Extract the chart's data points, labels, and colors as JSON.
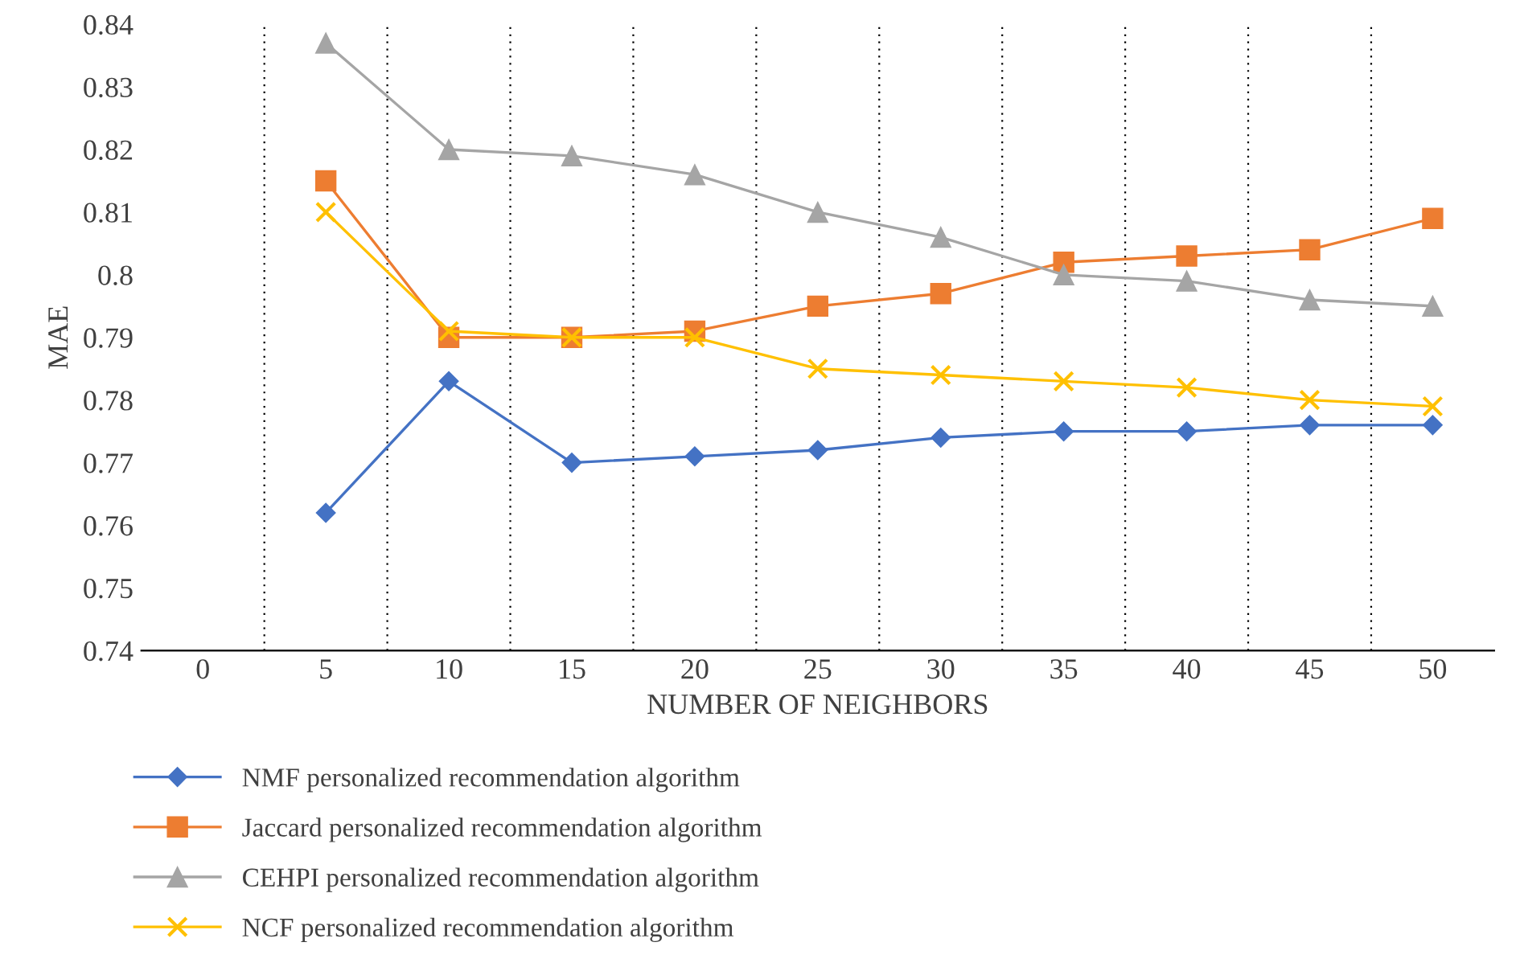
{
  "chart_data": {
    "type": "line",
    "xlabel": "NUMBER OF NEIGHBORS",
    "ylabel": "MAE",
    "categories": [
      "0",
      "5",
      "10",
      "15",
      "20",
      "25",
      "30",
      "35",
      "40",
      "45",
      "50"
    ],
    "series": [
      {
        "name": "NMF personalized recommendation algorithm",
        "color": "#4472c4",
        "marker": "diamond",
        "values": [
          null,
          0.762,
          0.783,
          0.77,
          0.771,
          0.772,
          0.774,
          0.775,
          0.775,
          0.776,
          0.776
        ]
      },
      {
        "name": "Jaccard personalized recommendation algorithm",
        "color": "#ed7d31",
        "marker": "square",
        "values": [
          null,
          0.815,
          0.79,
          0.79,
          0.791,
          0.795,
          0.797,
          0.802,
          0.803,
          0.804,
          0.809
        ]
      },
      {
        "name": "CEHPI personalized recommendation algorithm",
        "color": "#a5a5a5",
        "marker": "triangle",
        "values": [
          null,
          0.837,
          0.82,
          0.819,
          0.816,
          0.81,
          0.806,
          0.8,
          0.799,
          0.796,
          0.795
        ]
      },
      {
        "name": "NCF personalized recommendation algorithm",
        "color": "#ffc000",
        "marker": "cross",
        "values": [
          null,
          0.81,
          0.791,
          0.79,
          0.79,
          0.785,
          0.784,
          0.783,
          0.782,
          0.78,
          0.779
        ]
      }
    ],
    "ylim": [
      0.74,
      0.84
    ],
    "yticks": [
      0.74,
      0.75,
      0.76,
      0.77,
      0.78,
      0.79,
      0.8,
      0.81,
      0.82,
      0.83,
      0.84
    ],
    "grid": "x",
    "legend": "bottom",
    "line_style": "solid"
  }
}
